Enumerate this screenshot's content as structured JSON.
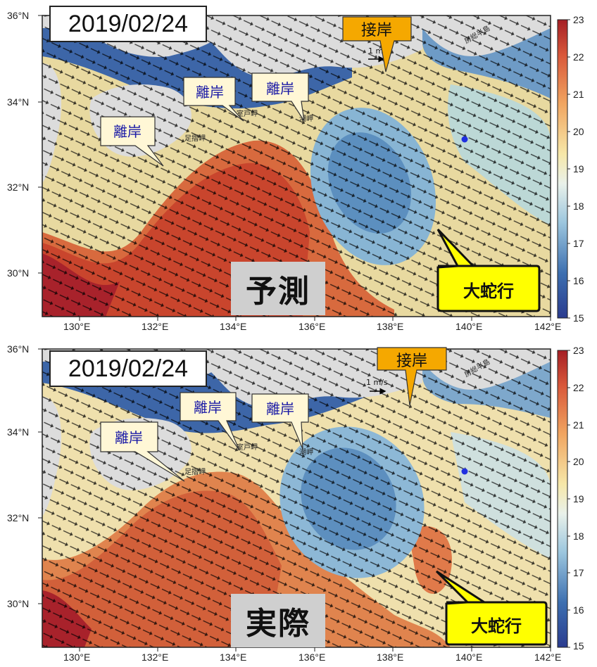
{
  "panels": [
    {
      "date": "2019/02/24",
      "label": "予測",
      "callouts": {
        "contact": "接岸",
        "separation1": "離岸",
        "separation2": "離岸",
        "separation3": "離岸",
        "meander": "大蛇行"
      },
      "scale_label": "1 m"
    },
    {
      "date": "2019/02/24",
      "label": "実際",
      "callouts": {
        "contact": "接岸",
        "separation1": "離岸",
        "separation2": "離岸",
        "separation3": "離岸",
        "meander": "大蛇行"
      },
      "scale_label": "1 m/s"
    }
  ],
  "place_names": {
    "ashizuri": "足摺岬",
    "muroto": "室戸岬",
    "shionomisaki": "潮岬",
    "boso": "房総半島"
  },
  "axes": {
    "lon_ticks": [
      "130°E",
      "132°E",
      "134°E",
      "136°E",
      "138°E",
      "140°E",
      "142°E"
    ],
    "lat_ticks": [
      "36°N",
      "34°N",
      "32°N",
      "30°N"
    ]
  },
  "colorbar": {
    "ticks": [
      "23",
      "22",
      "21",
      "20",
      "19",
      "18",
      "17",
      "16",
      "15"
    ],
    "min": 15,
    "max": 23
  },
  "colors": {
    "warm": "#b8322a",
    "cool": "#2b4d8f",
    "land": "#dcdcdc",
    "callout_fill": "#fff7d6",
    "contact_fill": "#f5a800",
    "meander_fill": "#ffff00",
    "callout_text": "#1a1aa6"
  }
}
